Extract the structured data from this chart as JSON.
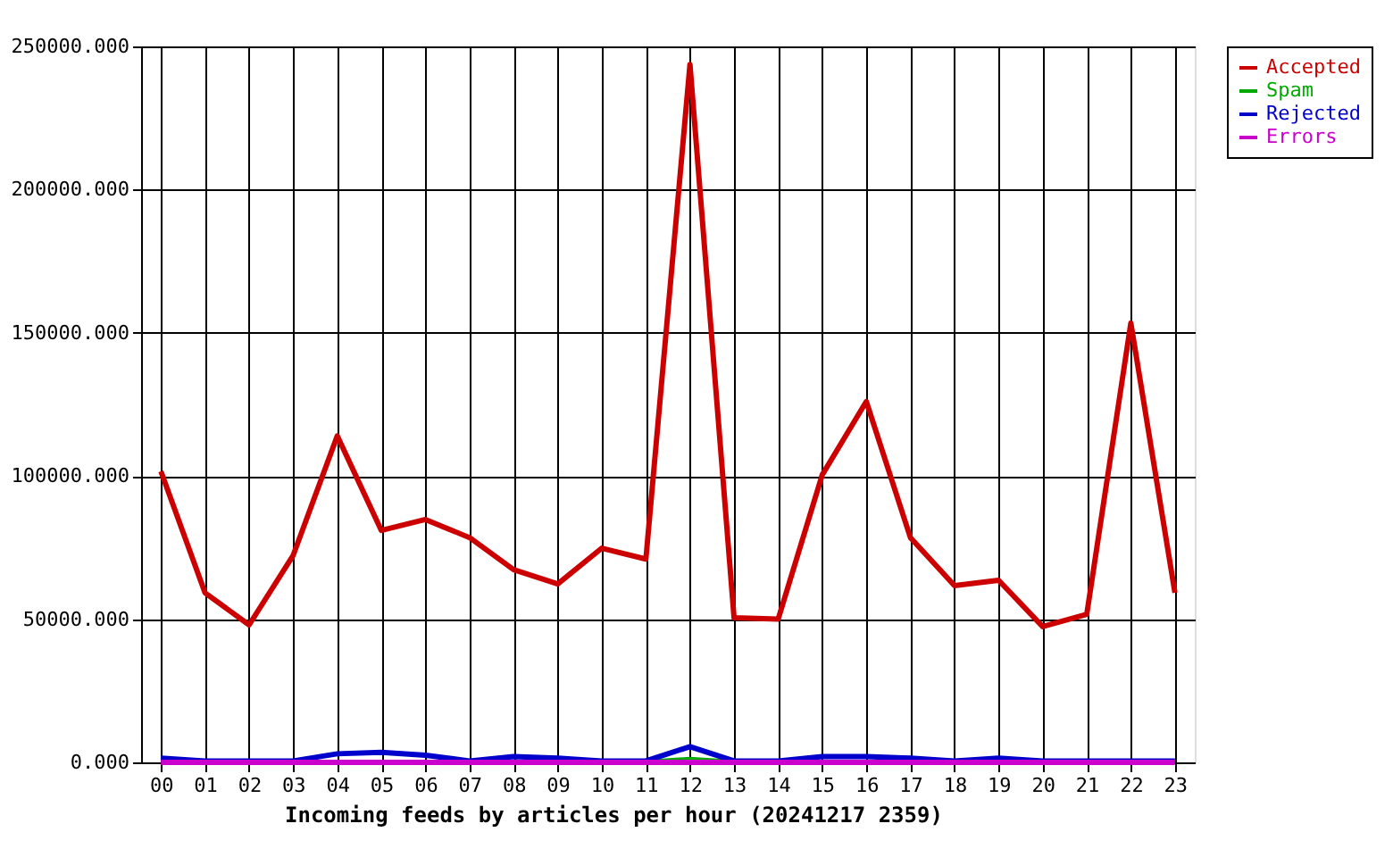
{
  "chart_data": {
    "type": "line",
    "xlabel": "Incoming feeds by articles per hour (20241217 2359)",
    "categories": [
      "00",
      "01",
      "02",
      "03",
      "04",
      "05",
      "06",
      "07",
      "08",
      "09",
      "10",
      "11",
      "12",
      "13",
      "14",
      "15",
      "16",
      "17",
      "18",
      "19",
      "20",
      "21",
      "22",
      "23"
    ],
    "series": [
      {
        "name": "Accepted",
        "color": "#cc0000",
        "values": [
          101600,
          59200,
          48000,
          72300,
          114000,
          81000,
          84800,
          78500,
          67300,
          62300,
          74800,
          71000,
          243700,
          50500,
          50000,
          100400,
          126000,
          78500,
          61700,
          63600,
          47400,
          51700,
          153400,
          59200
        ]
      },
      {
        "name": "Spam",
        "color": "#00aa00",
        "values": [
          null,
          null,
          null,
          null,
          null,
          null,
          null,
          null,
          null,
          null,
          null,
          0,
          1000,
          0,
          null,
          null,
          null,
          null,
          null,
          null,
          null,
          null,
          null,
          null
        ]
      },
      {
        "name": "Rejected",
        "color": "#0000cc",
        "values": [
          1500,
          500,
          500,
          500,
          3000,
          3500,
          2500,
          500,
          2000,
          1500,
          500,
          500,
          5500,
          500,
          500,
          2000,
          2000,
          1500,
          500,
          1500,
          500,
          500,
          500,
          500
        ]
      },
      {
        "name": "Errors",
        "color": "#cc00cc",
        "values": [
          0,
          0,
          0,
          0,
          0,
          0,
          0,
          0,
          0,
          0,
          0,
          0,
          0,
          0,
          0,
          0,
          0,
          0,
          0,
          0,
          0,
          0,
          0,
          0
        ]
      }
    ],
    "ylim": [
      0,
      250000
    ],
    "yticks": [
      {
        "value": 0,
        "label": "0.000"
      },
      {
        "value": 50000,
        "label": "50000.000"
      },
      {
        "value": 100000,
        "label": "100000.000"
      },
      {
        "value": 150000,
        "label": "150000.000"
      },
      {
        "value": 200000,
        "label": "200000.000"
      },
      {
        "value": 250000,
        "label": "250000.000"
      }
    ],
    "grid": true,
    "legend": "top right",
    "marker": "none",
    "line_style": "solid"
  }
}
